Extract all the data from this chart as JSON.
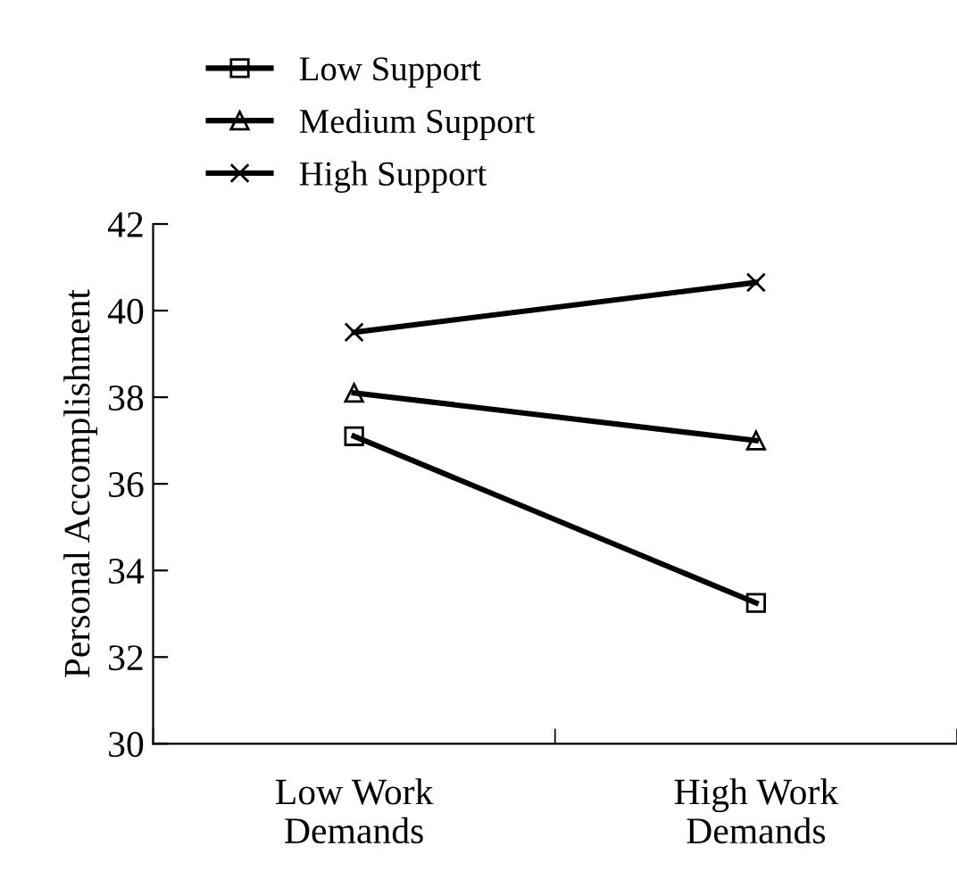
{
  "chart_data": {
    "type": "line",
    "ylabel": "Personal Accomplishment",
    "categories": [
      "Low Work\nDemands",
      "High Work\nDemands"
    ],
    "series": [
      {
        "name": "Low Support",
        "color": "#000000",
        "marker": "square",
        "values": [
          37.1,
          33.25
        ]
      },
      {
        "name": "Medium Support",
        "color": "#000000",
        "marker": "triangle",
        "values": [
          38.1,
          37.0
        ]
      },
      {
        "name": "High Support",
        "color": "#000000",
        "marker": "cross",
        "values": [
          39.5,
          40.65
        ]
      }
    ],
    "ylim": [
      30,
      42
    ],
    "yticks": [
      30,
      32,
      34,
      36,
      38,
      40,
      42
    ],
    "grid": false,
    "legend": "top left",
    "line_style": "solid"
  }
}
